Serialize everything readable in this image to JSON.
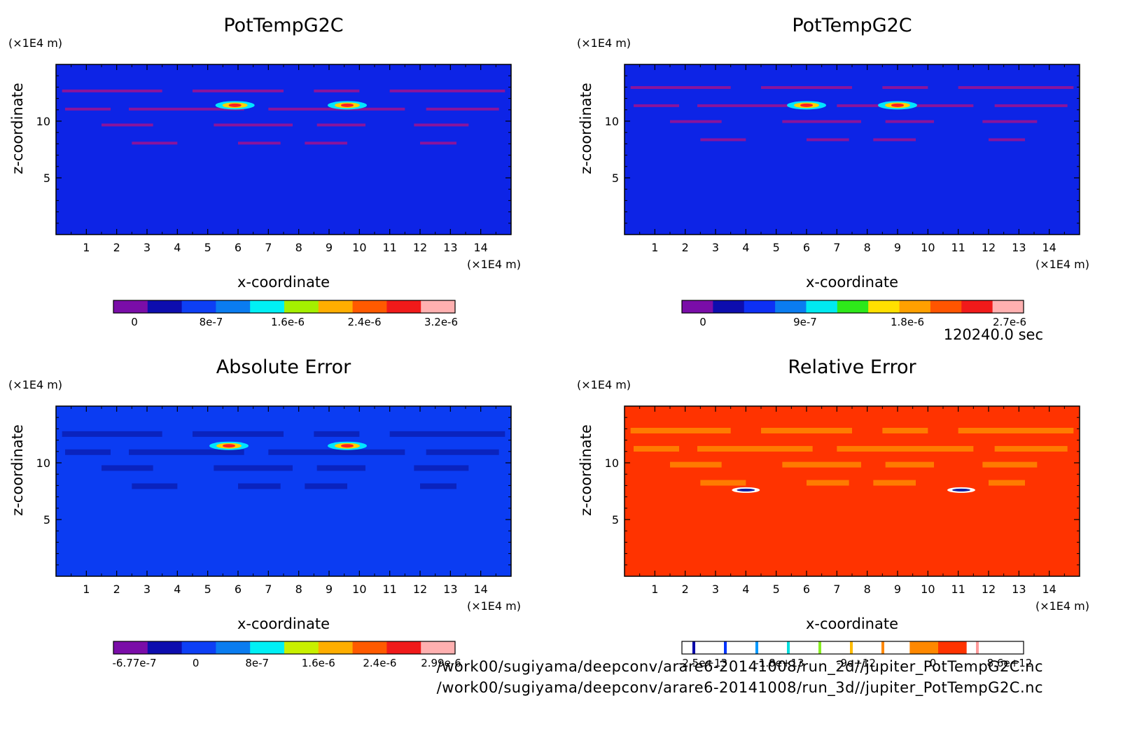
{
  "footer": {
    "time_stamp": "120240.0 sec",
    "path_2d": "/work00/sugiyama/deepconv/arare6-20141008/run_2d//jupiter_PotTempG2C.nc",
    "path_3d": "/work00/sugiyama/deepconv/arare6-20141008/run_3d//jupiter_PotTempG2C.nc"
  },
  "chart_data": [
    {
      "type": "heatmap",
      "title": "PotTempG2C",
      "xlabel": "x-coordinate",
      "ylabel": "z-coordinate",
      "x_unit": "(×1E4 m)",
      "y_unit": "(×1E4 m)",
      "xlim": [
        0,
        15
      ],
      "ylim": [
        0,
        15
      ],
      "x_ticks": [
        "1",
        "2",
        "3",
        "4",
        "5",
        "6",
        "7",
        "8",
        "9",
        "10",
        "11",
        "12",
        "13",
        "14"
      ],
      "y_ticks": [
        "5",
        "10"
      ],
      "background_color": "#0d24e6",
      "features": [
        {
          "x": 5.9,
          "z": 11.4,
          "kind": "hot-spot"
        },
        {
          "x": 9.6,
          "z": 11.4,
          "kind": "hot-spot"
        }
      ],
      "colorbar": {
        "colors": [
          "#7a0da8",
          "#0d0dae",
          "#0d3ff5",
          "#0a7cf0",
          "#00f0f5",
          "#a4f000",
          "#ffae00",
          "#ff5a00",
          "#f01a1a",
          "#ffb0b0"
        ],
        "tick_labels": [
          "0",
          "8e-7",
          "1.6e-6",
          "2.4e-6",
          "3.2e-6"
        ]
      }
    },
    {
      "type": "heatmap",
      "title": "PotTempG2C",
      "xlabel": "x-coordinate",
      "ylabel": "z-coordinate",
      "x_unit": "(×1E4 m)",
      "y_unit": "(×1E4 m)",
      "xlim": [
        0,
        15
      ],
      "ylim": [
        0,
        15
      ],
      "x_ticks": [
        "1",
        "2",
        "3",
        "4",
        "5",
        "6",
        "7",
        "8",
        "9",
        "10",
        "11",
        "12",
        "13",
        "14"
      ],
      "y_ticks": [
        "5",
        "10"
      ],
      "background_color": "#0d24e6",
      "features": [
        {
          "x": 6.0,
          "z": 11.4,
          "kind": "hot-spot"
        },
        {
          "x": 9.0,
          "z": 11.4,
          "kind": "hot-spot"
        }
      ],
      "colorbar": {
        "colors": [
          "#7a0da8",
          "#0d0dae",
          "#0d30f5",
          "#0a7cf0",
          "#00eaf0",
          "#2ee81a",
          "#ffe000",
          "#ffa000",
          "#ff5500",
          "#f01a1a",
          "#ffb0b0"
        ],
        "tick_labels": [
          "0",
          "9e-7",
          "1.8e-6",
          "2.7e-6"
        ]
      }
    },
    {
      "type": "heatmap",
      "title": "Absolute Error",
      "xlabel": "x-coordinate",
      "ylabel": "z-coordinate",
      "x_unit": "(×1E4 m)",
      "y_unit": "(×1E4 m)",
      "xlim": [
        0,
        15
      ],
      "ylim": [
        0,
        15
      ],
      "x_ticks": [
        "1",
        "2",
        "3",
        "4",
        "5",
        "6",
        "7",
        "8",
        "9",
        "10",
        "11",
        "12",
        "13",
        "14"
      ],
      "y_ticks": [
        "5",
        "10"
      ],
      "background_color": "#0b3cf2",
      "features": [
        {
          "x": 5.7,
          "z": 11.5,
          "kind": "hot-spot"
        },
        {
          "x": 9.6,
          "z": 11.5,
          "kind": "hot-spot"
        }
      ],
      "colorbar": {
        "colors": [
          "#7a0da8",
          "#0d0dae",
          "#0d3ff5",
          "#0a7cf0",
          "#00f0f5",
          "#c8f000",
          "#ffae00",
          "#ff5a00",
          "#f01a1a",
          "#ffb0b0"
        ],
        "tick_labels": [
          "-6.77e-7",
          "0",
          "8e-7",
          "1.6e-6",
          "2.4e-6",
          "2.99e-6"
        ]
      }
    },
    {
      "type": "heatmap",
      "title": "Relative Error",
      "xlabel": "x-coordinate",
      "ylabel": "z-coordinate",
      "x_unit": "(×1E4 m)",
      "y_unit": "(×1E4 m)",
      "xlim": [
        0,
        15
      ],
      "ylim": [
        0,
        15
      ],
      "x_ticks": [
        "1",
        "2",
        "3",
        "4",
        "5",
        "6",
        "7",
        "8",
        "9",
        "10",
        "11",
        "12",
        "13",
        "14"
      ],
      "y_ticks": [
        "5",
        "10"
      ],
      "background_color": "#ff3300",
      "features": [
        {
          "x": 4.0,
          "z": 7.6,
          "kind": "cold-spot"
        },
        {
          "x": 11.1,
          "z": 7.6,
          "kind": "cold-spot"
        }
      ],
      "colorbar": {
        "colors": [
          "#ffffff",
          "#ffffff",
          "#ffffff",
          "#ffffff",
          "#ffffff",
          "#ffffff",
          "#ffffff",
          "#ffffff",
          "#ff8800",
          "#ff3300",
          "#ffffff",
          "#ffffff"
        ],
        "stripes": [
          "#0000aa",
          "#0033ff",
          "#0099ff",
          "#00dddd",
          "#88ee22",
          "#ffbb00",
          "#ff8800",
          "",
          "",
          "#ff9999"
        ],
        "tick_labels": [
          "-2.5e+13",
          "-1.8e+13",
          "-9e+12",
          "0",
          "8.6e+12"
        ]
      }
    }
  ]
}
